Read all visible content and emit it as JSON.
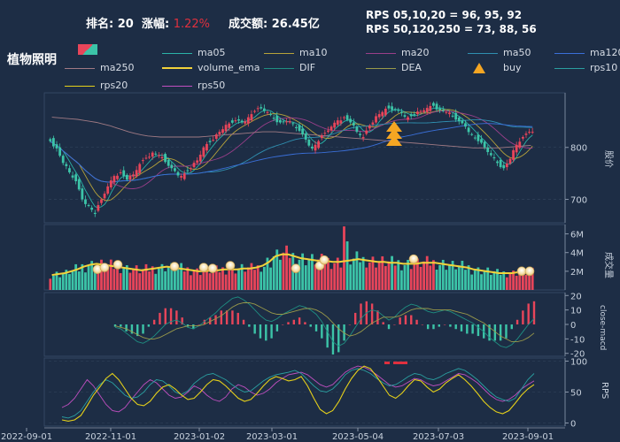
{
  "header": {
    "rank_label": "排名:",
    "rank_value": "20",
    "change_label": "涨幅:",
    "change_value": "1.22%",
    "turnover_label": "成交额:",
    "turnover_value": "26.45亿",
    "rps_line1": "RPS 05,10,20 = 96,  95,  92",
    "rps_line2": "RPS 50,120,250 = 73,  88,  56",
    "sector_name": "植物照明"
  },
  "colors": {
    "background": "#1d2d45",
    "up": "#e8455a",
    "down": "#3cc4a8",
    "change_text": "#e0303e",
    "ma05": "#2ab3a8",
    "ma10": "#b7a33a",
    "ma20": "#9a3f8a",
    "ma50": "#2f8fb0",
    "ma120": "#3a6fd8",
    "ma250": "#a07a84",
    "volume_ema": "#f2d23a",
    "dif": "#1f8f82",
    "dea": "#9a9a4a",
    "buy": "#f5a623",
    "rps10": "#2a9fa0",
    "rps20": "#e5d01a",
    "rps50": "#c04fc0"
  },
  "legend": [
    {
      "key": "ma05",
      "label": "ma05",
      "kind": "line"
    },
    {
      "key": "ma10",
      "label": "ma10",
      "kind": "line"
    },
    {
      "key": "ma20",
      "label": "ma20",
      "kind": "line"
    },
    {
      "key": "ma50",
      "label": "ma50",
      "kind": "line"
    },
    {
      "key": "ma120",
      "label": "ma120",
      "kind": "line"
    },
    {
      "key": "ma250",
      "label": "ma250",
      "kind": "line"
    },
    {
      "key": "volume_ema",
      "label": "volume_ema",
      "kind": "thick"
    },
    {
      "key": "dif",
      "label": "DIF",
      "kind": "line"
    },
    {
      "key": "dea",
      "label": "DEA",
      "kind": "line"
    },
    {
      "key": "buy",
      "label": "buy",
      "kind": "marker"
    },
    {
      "key": "rps10",
      "label": "rps10",
      "kind": "line"
    },
    {
      "key": "rps20",
      "label": "rps20",
      "kind": "line"
    },
    {
      "key": "rps50",
      "label": "rps50",
      "kind": "line"
    }
  ],
  "chart_data": {
    "type": "candlestick",
    "x_ticks": [
      "2022-09-01",
      "2022-11-01",
      "2023-01-02",
      "2023-03-01",
      "2023-05-04",
      "2023-07-03",
      "2023-09-01"
    ],
    "price_panel": {
      "ylabel": "股价",
      "ticks": [
        700,
        800
      ],
      "ylim": [
        655,
        905
      ],
      "close": [
        812,
        798,
        770,
        752,
        735,
        700,
        688,
        672,
        700,
        725,
        745,
        752,
        738,
        748,
        768,
        780,
        790,
        785,
        772,
        760,
        746,
        750,
        760,
        775,
        800,
        810,
        825,
        835,
        846,
        852,
        848,
        858,
        870,
        875,
        868,
        855,
        848,
        850,
        845,
        832,
        815,
        798,
        812,
        828,
        840,
        852,
        858,
        848,
        830,
        820,
        842,
        860,
        868,
        875,
        872,
        866,
        858,
        862,
        870,
        876,
        880,
        872,
        868,
        860,
        850,
        840,
        825,
        812,
        800,
        785,
        770,
        760,
        778,
        805,
        820,
        830
      ],
      "ma250": [
        858,
        857,
        856,
        855,
        854,
        852,
        850,
        848,
        845,
        842,
        838,
        834,
        830,
        827,
        824,
        822,
        821,
        820,
        820,
        820,
        820,
        820,
        820,
        820,
        821,
        822,
        823,
        824,
        825,
        826,
        827,
        828,
        829,
        830,
        830,
        830,
        829,
        828,
        827,
        826,
        825,
        824,
        823,
        822,
        821,
        820,
        819,
        818,
        817,
        816,
        815,
        814,
        813,
        812,
        811,
        810,
        809,
        808,
        807,
        806,
        805,
        804,
        803,
        802,
        801,
        800,
        799,
        799,
        799,
        799,
        799,
        800,
        801,
        802,
        803,
        804
      ]
    },
    "volume_panel": {
      "ylabel": "成交量",
      "unit": "M",
      "ticks": [
        "2M",
        "4M",
        "6M"
      ],
      "ylim": [
        0,
        7
      ],
      "volume_ema_M": [
        1.6,
        1.7,
        1.8,
        2.0,
        2.2,
        2.5,
        2.7,
        2.8,
        2.7,
        2.6,
        2.5,
        2.4,
        2.3,
        2.2,
        2.1,
        2.2,
        2.3,
        2.4,
        2.5,
        2.4,
        2.3,
        2.2,
        2.1,
        2.0,
        2.0,
        2.1,
        2.1,
        2.2,
        2.2,
        2.2,
        2.3,
        2.3,
        2.4,
        2.6,
        3.0,
        3.6,
        3.8,
        3.8,
        3.6,
        3.4,
        3.3,
        3.2,
        3.1,
        3.1,
        3.0,
        3.0,
        3.1,
        3.2,
        3.3,
        3.2,
        3.1,
        3.0,
        3.0,
        2.9,
        2.9,
        2.8,
        2.8,
        2.8,
        2.9,
        2.9,
        2.9,
        2.8,
        2.7,
        2.6,
        2.5,
        2.4,
        2.2,
        2.1,
        2.0,
        1.9,
        1.8,
        1.8,
        1.8,
        1.9,
        1.9,
        1.9
      ],
      "spike_M": 6.8
    },
    "macd_panel": {
      "ylabel": "close-macd",
      "ticks": [
        -20,
        -10,
        0,
        10,
        20
      ],
      "ylim": [
        -22,
        22
      ],
      "dif": [
        -2,
        -3,
        -6,
        -9,
        -12,
        -13,
        -11,
        -8,
        -4,
        0,
        2,
        3,
        1,
        -2,
        -3,
        -1,
        2,
        5,
        8,
        12,
        15,
        18,
        19,
        17,
        14,
        10,
        6,
        3,
        2,
        4,
        7,
        9,
        11,
        13,
        12,
        10,
        7,
        2,
        -5,
        -12,
        -15,
        -13,
        -8,
        -2,
        4,
        8,
        10,
        9,
        6,
        3,
        5,
        9,
        12,
        14,
        13,
        11,
        9,
        8,
        9,
        10,
        9,
        7,
        5,
        3,
        1,
        -2,
        -5,
        -9,
        -12,
        -15,
        -16,
        -14,
        -10,
        -5,
        0,
        4
      ],
      "dea": [
        -1,
        -2,
        -3,
        -5,
        -7,
        -9,
        -10,
        -10,
        -9,
        -7,
        -5,
        -3,
        -2,
        -1,
        -1,
        -1,
        0,
        2,
        4,
        6,
        9,
        12,
        14,
        15,
        15,
        14,
        12,
        10,
        8,
        7,
        7,
        8,
        9,
        10,
        11,
        11,
        10,
        8,
        5,
        1,
        -3,
        -6,
        -8,
        -7,
        -5,
        -2,
        1,
        3,
        5,
        5,
        5,
        6,
        8,
        10,
        11,
        11,
        11,
        10,
        10,
        10,
        10,
        9,
        8,
        7,
        5,
        3,
        1,
        -2,
        -5,
        -8,
        -10,
        -12,
        -12,
        -11,
        -9,
        -6
      ]
    },
    "rps_panel": {
      "ylabel": "RPS",
      "ticks": [
        0,
        50,
        100
      ],
      "ylim": [
        -5,
        105
      ],
      "rps10": [
        10,
        8,
        12,
        20,
        35,
        50,
        62,
        70,
        65,
        55,
        45,
        40,
        42,
        50,
        62,
        70,
        68,
        60,
        50,
        46,
        52,
        64,
        72,
        78,
        80,
        75,
        70,
        62,
        55,
        50,
        52,
        60,
        68,
        74,
        78,
        80,
        82,
        85,
        80,
        70,
        60,
        52,
        50,
        55,
        65,
        78,
        85,
        88,
        85,
        80,
        72,
        65,
        60,
        62,
        68,
        75,
        80,
        78,
        72,
        70,
        74,
        80,
        84,
        88,
        85,
        78,
        70,
        60,
        50,
        42,
        38,
        35,
        40,
        55,
        70,
        80
      ],
      "rps20": [
        5,
        3,
        5,
        12,
        28,
        45,
        58,
        72,
        80,
        70,
        55,
        40,
        30,
        28,
        35,
        48,
        58,
        62,
        55,
        45,
        38,
        40,
        50,
        62,
        70,
        68,
        60,
        50,
        40,
        35,
        38,
        48,
        60,
        70,
        75,
        72,
        68,
        70,
        75,
        60,
        40,
        22,
        15,
        20,
        35,
        55,
        72,
        85,
        92,
        88,
        75,
        60,
        45,
        40,
        48,
        60,
        70,
        68,
        58,
        50,
        55,
        65,
        72,
        78,
        70,
        60,
        48,
        35,
        25,
        18,
        15,
        20,
        32,
        45,
        55,
        62
      ],
      "rps50": [
        25,
        30,
        40,
        55,
        70,
        60,
        45,
        30,
        20,
        18,
        25,
        38,
        50,
        62,
        70,
        65,
        55,
        45,
        40,
        42,
        50,
        60,
        55,
        45,
        38,
        35,
        42,
        55,
        62,
        58,
        50,
        45,
        48,
        55,
        65,
        72,
        78,
        80,
        82,
        78,
        70,
        62,
        58,
        62,
        72,
        82,
        88,
        92,
        90,
        85,
        78,
        70,
        62,
        58,
        60,
        66,
        72,
        70,
        64,
        60,
        62,
        68,
        74,
        80,
        78,
        72,
        65,
        55,
        45,
        38,
        35,
        38,
        45,
        55,
        62,
        68
      ]
    }
  }
}
